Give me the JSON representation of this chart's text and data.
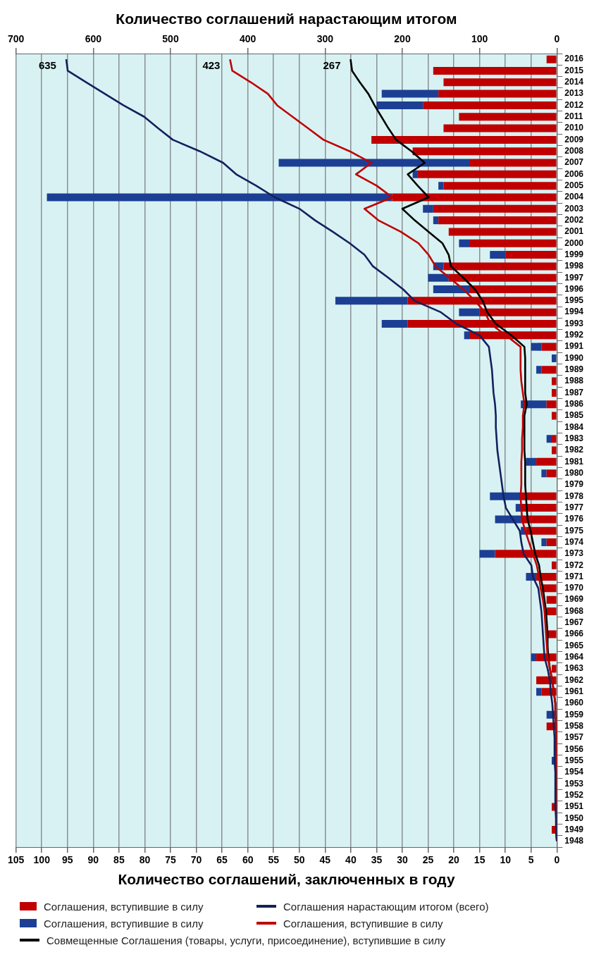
{
  "chart_data": {
    "type": "bar",
    "orientation": "horizontal",
    "stacked": true,
    "xlabel": "Количество соглашений, заключенных в году",
    "x2label": "Количество соглашений нарастающим итогом",
    "categories": [
      "2016",
      "2015",
      "2014",
      "2013",
      "2012",
      "2011",
      "2010",
      "2009",
      "2008",
      "2007",
      "2006",
      "2005",
      "2004",
      "2003",
      "2002",
      "2001",
      "2000",
      "1999",
      "1998",
      "1997",
      "1996",
      "1995",
      "1994",
      "1993",
      "1992",
      "1991",
      "1990",
      "1989",
      "1988",
      "1987",
      "1986",
      "1985",
      "1984",
      "1983",
      "1982",
      "1981",
      "1980",
      "1979",
      "1978",
      "1977",
      "1976",
      "1975",
      "1974",
      "1973",
      "1972",
      "1971",
      "1970",
      "1969",
      "1968",
      "1967",
      "1966",
      "1965",
      "1964",
      "1963",
      "1962",
      "1961",
      "1960",
      "1959",
      "1958",
      "1957",
      "1956",
      "1955",
      "1954",
      "1953",
      "1952",
      "1951",
      "1950",
      "1949",
      "1948"
    ],
    "xlim": [
      105,
      0
    ],
    "xticks": [
      105,
      100,
      95,
      90,
      85,
      80,
      75,
      70,
      65,
      60,
      55,
      50,
      45,
      40,
      35,
      30,
      25,
      20,
      15,
      10,
      5,
      0
    ],
    "x2lim": [
      700,
      0
    ],
    "x2ticks": [
      700,
      600,
      500,
      400,
      300,
      200,
      100,
      0
    ],
    "grid": "x",
    "legend": "bottom",
    "series": [
      {
        "type": "bar",
        "name": "Соглашения, вступившие в силу",
        "color": "#c00000",
        "values": [
          2,
          24,
          22,
          23,
          26,
          19,
          22,
          36,
          28,
          17,
          27,
          22,
          32,
          24,
          23,
          21,
          17,
          10,
          22,
          21,
          17,
          29,
          15,
          29,
          17,
          3,
          0,
          3,
          1,
          1,
          2,
          1,
          0,
          1,
          1,
          4,
          2,
          0,
          7,
          7,
          7,
          6,
          2,
          12,
          1,
          4,
          3,
          2,
          2,
          0,
          2,
          0,
          4,
          1,
          4,
          3,
          0,
          0,
          2,
          0,
          0,
          0,
          0,
          0,
          0,
          1,
          0,
          1,
          0
        ]
      },
      {
        "type": "line",
        "axis": "x2",
        "name": "Соглашения нарастающим итогом (всего)",
        "color": "#14205e",
        "values": [
          635,
          633,
          609,
          585,
          561,
          534,
          516,
          497,
          462,
          432,
          415,
          389,
          365,
          333,
          313,
          290,
          268,
          249,
          238,
          218,
          199,
          184,
          150,
          130,
          100,
          88,
          86,
          84,
          83,
          82,
          80,
          79,
          79,
          78,
          77,
          75,
          73,
          71,
          69,
          66,
          57,
          48,
          46,
          43,
          33,
          31,
          24,
          22,
          20,
          19,
          18,
          17,
          16,
          12,
          9,
          8,
          6,
          5,
          4,
          3,
          3,
          3,
          2,
          2,
          2,
          2,
          1,
          1,
          0
        ],
        "value_labels": [
          "635",
          null,
          null,
          null,
          null,
          null,
          null,
          null,
          null,
          null,
          null,
          null,
          null,
          null,
          null,
          null,
          null,
          null,
          null,
          null,
          null,
          null,
          null,
          null,
          null,
          null,
          null,
          null,
          null,
          null,
          null,
          null,
          null,
          null,
          null,
          null,
          null,
          null,
          null,
          null,
          null,
          null,
          null,
          null,
          null,
          null,
          null,
          null,
          null,
          null,
          null,
          null,
          null,
          null,
          null,
          null,
          null,
          null,
          null,
          null,
          null,
          null,
          null,
          null,
          null,
          null,
          null,
          null,
          null
        ]
      },
      {
        "type": "bar",
        "name": "Соглашения, вступившие в силу",
        "color": "#1c3f94",
        "values": [
          0,
          0,
          0,
          11,
          9,
          0,
          0,
          0,
          0,
          37,
          1,
          1,
          67,
          2,
          1,
          0,
          2,
          3,
          2,
          4,
          7,
          14,
          4,
          5,
          1,
          2,
          1,
          1,
          0,
          0,
          5,
          0,
          0,
          1,
          0,
          2,
          1,
          0,
          6,
          1,
          5,
          1,
          1,
          3,
          0,
          2,
          0,
          0,
          0,
          0,
          0,
          0,
          1,
          0,
          0,
          1,
          0,
          2,
          0,
          0,
          0,
          1,
          0,
          0,
          0,
          0,
          0,
          0,
          0
        ]
      },
      {
        "type": "line",
        "axis": "x2",
        "name": "Соглашения, вступившие в силу",
        "color": "#c00000",
        "values": [
          423,
          420,
          396,
          374,
          362,
          342,
          322,
          302,
          268,
          240,
          260,
          233,
          213,
          249,
          231,
          202,
          179,
          166,
          157,
          139,
          121,
          106,
          93,
          86,
          66,
          47,
          47,
          47,
          46,
          44,
          42,
          44,
          44,
          45,
          45,
          46,
          46,
          46,
          47,
          46,
          45,
          41,
          36,
          31,
          26,
          23,
          21,
          18,
          16,
          15,
          14,
          13,
          12,
          9,
          6,
          4,
          2,
          2,
          1,
          1,
          1,
          1,
          1,
          1,
          1,
          1,
          1,
          1,
          0
        ],
        "value_labels": [
          "423",
          null,
          null,
          null,
          null,
          null,
          null,
          null,
          null,
          null,
          null,
          null,
          null,
          null,
          null,
          null,
          null,
          null,
          null,
          null,
          null,
          null,
          null,
          null,
          null,
          null,
          null,
          null,
          null,
          null,
          null,
          null,
          null,
          null,
          null,
          null,
          null,
          null,
          null,
          null,
          null,
          null,
          null,
          null,
          null,
          null,
          null,
          null,
          null,
          null,
          null,
          null,
          null,
          null,
          null,
          null,
          null,
          null,
          null,
          null,
          null,
          null,
          null,
          null,
          null,
          null,
          null,
          null,
          null
        ]
      },
      {
        "type": "line",
        "axis": "x2",
        "name": "Совмещенные Соглашения (товары, услуги, присоединение), вступившие в силу",
        "color": "#000000",
        "values": [
          267,
          265,
          255,
          244,
          236,
          227,
          218,
          208,
          188,
          171,
          193,
          180,
          166,
          200,
          184,
          166,
          148,
          140,
          137,
          121,
          106,
          96,
          90,
          79,
          59,
          42,
          41,
          41,
          41,
          41,
          39,
          42,
          42,
          42,
          42,
          41,
          41,
          41,
          40,
          39,
          38,
          34,
          31,
          28,
          23,
          21,
          18,
          16,
          14,
          13,
          12,
          12,
          11,
          9,
          6,
          4,
          2,
          2,
          1,
          1,
          1,
          1,
          1,
          1,
          1,
          1,
          1,
          1,
          0
        ],
        "value_labels": [
          "267",
          null,
          null,
          null,
          null,
          null,
          null,
          null,
          null,
          null,
          null,
          null,
          null,
          null,
          null,
          null,
          null,
          null,
          null,
          null,
          null,
          null,
          null,
          null,
          null,
          null,
          null,
          null,
          null,
          null,
          null,
          null,
          null,
          null,
          null,
          null,
          null,
          null,
          null,
          null,
          null,
          null,
          null,
          null,
          null,
          null,
          null,
          null,
          null,
          null,
          null,
          null,
          null,
          null,
          null,
          null,
          null,
          null,
          null,
          null,
          null,
          null,
          null,
          null,
          null,
          null,
          null,
          null,
          null
        ]
      }
    ]
  }
}
